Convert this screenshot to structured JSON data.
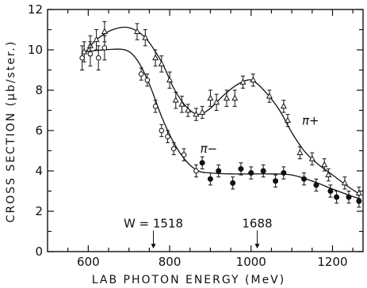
{
  "chart_data": {
    "type": "scatter",
    "title": "",
    "xlabel": "LAB PHOTON ENERGY (MeV)",
    "ylabel": "CROSS SECTION (μb/ster.)",
    "xlim": [
      500,
      1275
    ],
    "ylim": [
      0,
      12
    ],
    "x_ticks": [
      600,
      800,
      1000,
      1200
    ],
    "y_ticks": [
      0,
      2,
      4,
      6,
      8,
      10,
      12
    ],
    "grid": false,
    "legend": "none",
    "series": [
      {
        "name": "π+",
        "marker": "open-triangle",
        "points": [
          {
            "x": 590,
            "y": 9.9,
            "err": 0.5
          },
          {
            "x": 605,
            "y": 10.2,
            "err": 0.5
          },
          {
            "x": 620,
            "y": 10.5,
            "err": 0.5
          },
          {
            "x": 640,
            "y": 10.9,
            "err": 0.5
          },
          {
            "x": 720,
            "y": 10.9,
            "err": 0.4
          },
          {
            "x": 740,
            "y": 10.6,
            "err": 0.4
          },
          {
            "x": 765,
            "y": 9.6,
            "err": 0.4
          },
          {
            "x": 780,
            "y": 9.3,
            "err": 0.4
          },
          {
            "x": 800,
            "y": 8.5,
            "err": 0.4
          },
          {
            "x": 815,
            "y": 7.5,
            "err": 0.4
          },
          {
            "x": 830,
            "y": 7.3,
            "err": 0.4
          },
          {
            "x": 845,
            "y": 7.0,
            "err": 0.3
          },
          {
            "x": 865,
            "y": 6.8,
            "err": 0.3
          },
          {
            "x": 880,
            "y": 6.9,
            "err": 0.3
          },
          {
            "x": 900,
            "y": 7.6,
            "err": 0.4
          },
          {
            "x": 915,
            "y": 7.4,
            "err": 0.4
          },
          {
            "x": 940,
            "y": 7.6,
            "err": 0.4
          },
          {
            "x": 960,
            "y": 7.6,
            "err": 0.4
          },
          {
            "x": 980,
            "y": 8.4,
            "err": 0.3
          },
          {
            "x": 1005,
            "y": 8.5,
            "err": 0.3
          },
          {
            "x": 1045,
            "y": 7.7,
            "err": 0.3
          },
          {
            "x": 1080,
            "y": 7.2,
            "err": 0.3
          },
          {
            "x": 1090,
            "y": 6.5,
            "err": 0.3
          },
          {
            "x": 1120,
            "y": 4.9,
            "err": 0.3
          },
          {
            "x": 1150,
            "y": 4.6,
            "err": 0.3
          },
          {
            "x": 1180,
            "y": 4.3,
            "err": 0.3
          },
          {
            "x": 1190,
            "y": 3.8,
            "err": 0.3
          },
          {
            "x": 1230,
            "y": 3.4,
            "err": 0.3
          },
          {
            "x": 1265,
            "y": 2.9,
            "err": 0.3
          }
        ]
      },
      {
        "name": "π−",
        "marker": "open-circle",
        "points": [
          {
            "x": 585,
            "y": 9.6,
            "err": 0.6
          },
          {
            "x": 605,
            "y": 9.8,
            "err": 0.6
          },
          {
            "x": 625,
            "y": 9.6,
            "err": 0.6
          },
          {
            "x": 640,
            "y": 10.1,
            "err": 0.6
          },
          {
            "x": 730,
            "y": 8.8,
            "err": 0.3
          },
          {
            "x": 745,
            "y": 8.5,
            "err": 0.3
          },
          {
            "x": 765,
            "y": 7.2,
            "err": 0.3
          },
          {
            "x": 780,
            "y": 6.0,
            "err": 0.3
          },
          {
            "x": 795,
            "y": 5.7,
            "err": 0.3
          },
          {
            "x": 810,
            "y": 5.1,
            "err": 0.3
          },
          {
            "x": 835,
            "y": 4.8,
            "err": 0.3
          },
          {
            "x": 865,
            "y": 4.0,
            "err": 0.3
          }
        ]
      },
      {
        "name": "π−",
        "marker": "filled-circle",
        "points": [
          {
            "x": 880,
            "y": 4.4,
            "err": 0.3
          },
          {
            "x": 900,
            "y": 3.6,
            "err": 0.3
          },
          {
            "x": 920,
            "y": 4.0,
            "err": 0.3
          },
          {
            "x": 955,
            "y": 3.4,
            "err": 0.3
          },
          {
            "x": 975,
            "y": 4.1,
            "err": 0.3
          },
          {
            "x": 1000,
            "y": 3.9,
            "err": 0.3
          },
          {
            "x": 1030,
            "y": 4.0,
            "err": 0.3
          },
          {
            "x": 1060,
            "y": 3.5,
            "err": 0.3
          },
          {
            "x": 1080,
            "y": 3.9,
            "err": 0.3
          },
          {
            "x": 1130,
            "y": 3.6,
            "err": 0.3
          },
          {
            "x": 1160,
            "y": 3.3,
            "err": 0.3
          },
          {
            "x": 1195,
            "y": 3.0,
            "err": 0.3
          },
          {
            "x": 1210,
            "y": 2.7,
            "err": 0.3
          },
          {
            "x": 1240,
            "y": 2.7,
            "err": 0.3
          },
          {
            "x": 1265,
            "y": 2.5,
            "err": 0.3
          }
        ]
      }
    ],
    "curves": [
      {
        "name": "π+",
        "points": [
          [
            590,
            9.8
          ],
          [
            620,
            10.5
          ],
          [
            660,
            11.0
          ],
          [
            700,
            11.1
          ],
          [
            740,
            10.6
          ],
          [
            780,
            9.4
          ],
          [
            810,
            8.1
          ],
          [
            840,
            7.2
          ],
          [
            870,
            6.8
          ],
          [
            900,
            7.1
          ],
          [
            930,
            7.7
          ],
          [
            960,
            8.2
          ],
          [
            990,
            8.5
          ],
          [
            1010,
            8.4
          ],
          [
            1040,
            7.8
          ],
          [
            1070,
            7.0
          ],
          [
            1100,
            5.9
          ],
          [
            1130,
            5.0
          ],
          [
            1160,
            4.4
          ],
          [
            1200,
            3.8
          ],
          [
            1240,
            3.2
          ],
          [
            1270,
            2.8
          ]
        ]
      },
      {
        "name": "π−",
        "points": [
          [
            590,
            9.9
          ],
          [
            640,
            10.0
          ],
          [
            690,
            10.0
          ],
          [
            720,
            9.5
          ],
          [
            750,
            8.3
          ],
          [
            780,
            6.7
          ],
          [
            810,
            5.4
          ],
          [
            840,
            4.5
          ],
          [
            870,
            4.0
          ],
          [
            900,
            3.9
          ],
          [
            950,
            3.85
          ],
          [
            1000,
            3.85
          ],
          [
            1050,
            3.85
          ],
          [
            1100,
            3.8
          ],
          [
            1150,
            3.5
          ],
          [
            1200,
            3.1
          ],
          [
            1240,
            2.8
          ],
          [
            1270,
            2.6
          ]
        ]
      }
    ],
    "series_labels": [
      {
        "text": "π+",
        "x": 1125,
        "y": 6.3
      },
      {
        "text": "π−",
        "x": 875,
        "y": 4.9
      }
    ],
    "annotations": [
      {
        "text": "W = 1518",
        "x": 760,
        "y": 1.2,
        "arrow_to_y": 0.15
      },
      {
        "text": "1688",
        "x": 1015,
        "y": 1.2,
        "arrow_to_y": 0.15
      }
    ]
  }
}
